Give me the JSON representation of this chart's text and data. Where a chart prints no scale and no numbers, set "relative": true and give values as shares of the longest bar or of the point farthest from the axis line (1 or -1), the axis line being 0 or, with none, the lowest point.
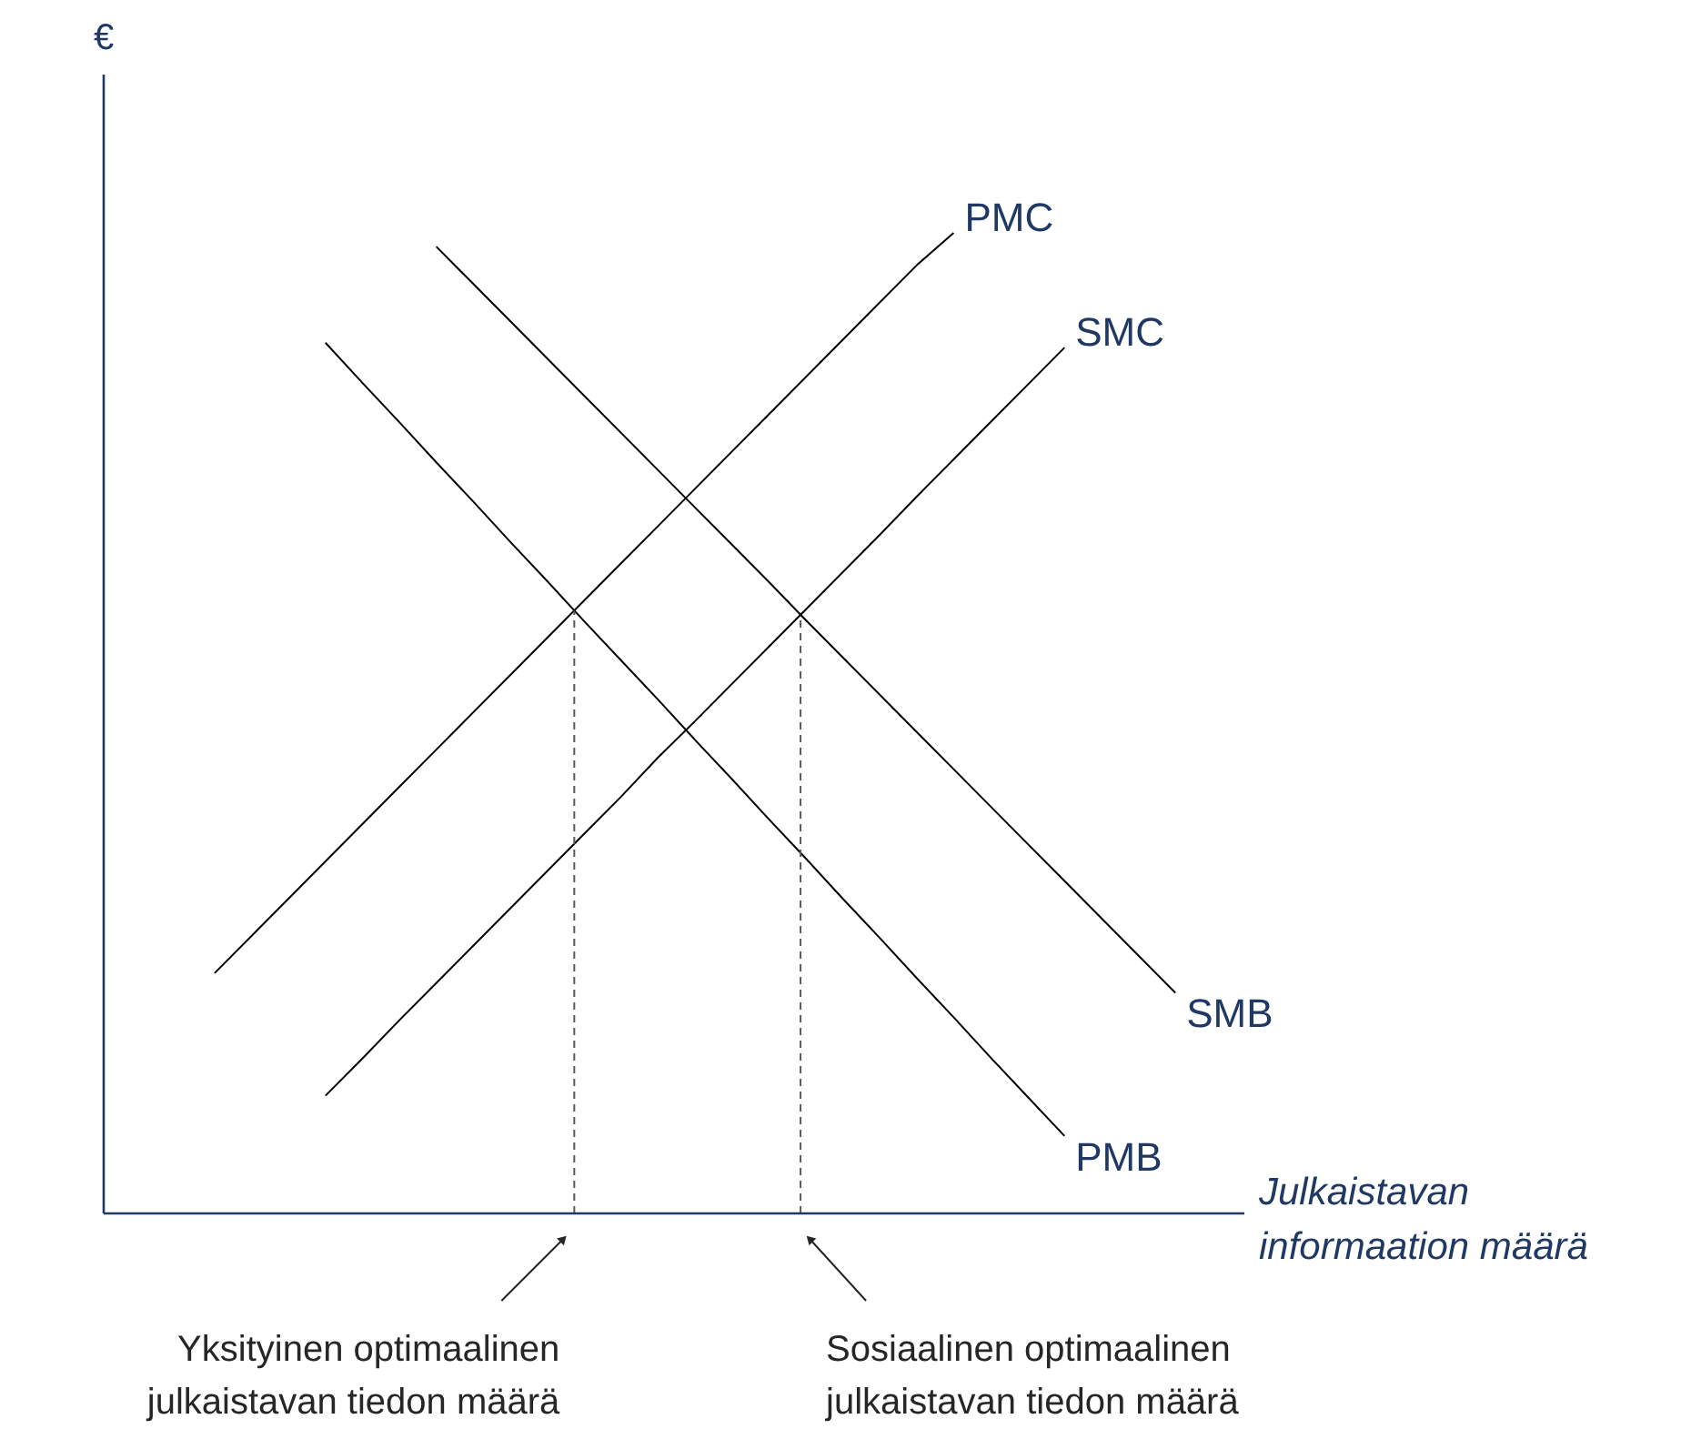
{
  "chart_data": {
    "type": "line",
    "relative": true,
    "ylabel": "€",
    "xlabel": "Julkaistavan\ninformaation määrä",
    "categories": [
      null,
      null,
      null,
      null,
      null,
      null,
      null,
      null,
      null,
      null,
      null,
      null,
      null,
      null,
      null,
      null,
      null,
      null,
      null,
      null,
      null,
      null,
      null,
      null,
      null,
      null,
      null,
      null,
      null,
      null,
      null
    ],
    "series": [
      {
        "name": "PMC",
        "color": "#000000",
        "values": [
          null,
          null,
          null,
          0.245,
          0.283,
          0.321,
          0.359,
          0.397,
          0.435,
          0.473,
          0.511,
          0.549,
          0.587,
          0.625,
          0.663,
          0.701,
          0.739,
          0.777,
          0.815,
          0.853,
          0.891,
          0.929,
          0.967,
          1.0,
          null,
          null,
          null,
          null,
          null,
          null,
          null
        ]
      },
      {
        "name": "SMC",
        "color": "#000000",
        "values": [
          null,
          null,
          null,
          null,
          null,
          null,
          0.12,
          0.158,
          0.197,
          0.235,
          0.273,
          0.311,
          0.349,
          0.387,
          0.425,
          0.465,
          0.502,
          0.54,
          0.578,
          0.616,
          0.654,
          0.692,
          0.731,
          0.769,
          0.807,
          0.845,
          0.883,
          null,
          null,
          null,
          null
        ]
      },
      {
        "name": "PMB",
        "color": "#000000",
        "values": [
          null,
          null,
          null,
          null,
          null,
          null,
          0.888,
          0.847,
          0.807,
          0.766,
          0.726,
          0.685,
          0.645,
          0.604,
          0.564,
          0.524,
          0.483,
          0.443,
          0.402,
          0.362,
          0.321,
          0.281,
          0.24,
          0.2,
          0.159,
          0.119,
          0.079,
          null,
          null,
          null,
          null
        ]
      },
      {
        "name": "SMB",
        "color": "#000000",
        "values": [
          null,
          null,
          null,
          null,
          null,
          null,
          null,
          null,
          null,
          0.986,
          0.948,
          0.91,
          0.872,
          0.834,
          0.796,
          0.758,
          0.72,
          0.682,
          0.644,
          0.605,
          0.567,
          0.529,
          0.491,
          0.453,
          0.415,
          0.377,
          0.339,
          0.301,
          0.263,
          0.225,
          null
        ]
      }
    ],
    "annotations": [
      "Yksityinen optimaalinen\njulkaistavan tiedon määrä",
      "Sosiaalinen optimaalinen\njulkaistavan tiedon määrä"
    ]
  }
}
